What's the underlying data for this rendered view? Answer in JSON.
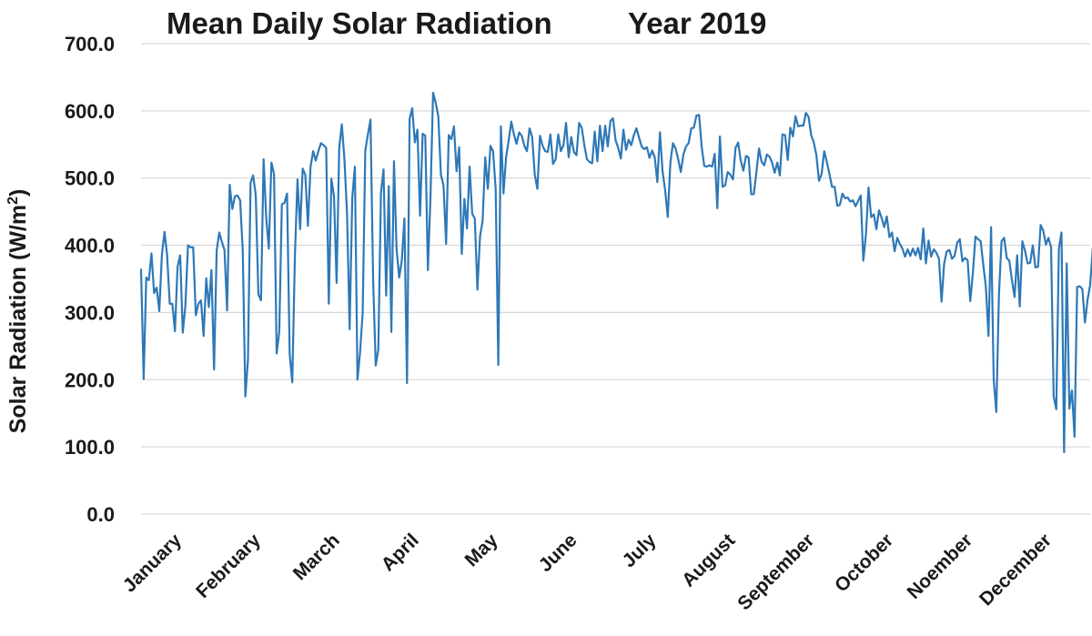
{
  "chart_data": {
    "type": "line",
    "title": "Mean Daily Solar Radiation",
    "title_year": "Year 2019",
    "ylabel_main": "Solar Radiation (W/m",
    "ylabel_sup": "2",
    "ylabel_end": ")",
    "ylim": [
      0,
      700
    ],
    "y_ticks": [
      "0.0",
      "100.0",
      "200.0",
      "300.0",
      "400.0",
      "500.0",
      "600.0",
      "700.0"
    ],
    "x_tick_labels": [
      "January",
      "February",
      "March",
      "April",
      "May",
      "June",
      "July",
      "August",
      "September",
      "October",
      "Noember",
      "December"
    ],
    "x_range_days": [
      1,
      365
    ],
    "grid": true,
    "series_color": "#2e78b7",
    "series": [
      {
        "values": [
          365,
          201,
          352,
          348,
          388,
          329,
          337,
          302,
          386,
          420,
          385,
          313,
          313,
          272,
          368,
          385,
          270,
          310,
          400,
          397,
          397,
          296,
          313,
          318,
          265,
          351,
          308,
          363,
          215,
          392,
          419,
          405,
          393,
          303,
          490,
          454,
          473,
          474,
          467,
          393,
          175,
          230,
          493,
          504,
          474,
          327,
          318,
          528,
          441,
          395,
          523,
          506,
          239,
          271,
          461,
          463,
          477,
          238,
          196,
          384,
          498,
          424,
          514,
          505,
          429,
          517,
          540,
          526,
          540,
          552,
          549,
          545,
          313,
          499,
          473,
          344,
          545,
          580,
          528,
          447,
          275,
          470,
          517,
          200,
          241,
          300,
          541,
          565,
          587,
          350,
          221,
          245,
          478,
          513,
          325,
          488,
          271,
          525,
          394,
          352,
          377,
          440,
          195,
          588,
          604,
          553,
          572,
          444,
          566,
          563,
          363,
          472,
          627,
          612,
          592,
          505,
          489,
          402,
          564,
          558,
          577,
          510,
          546,
          387,
          469,
          425,
          517,
          447,
          440,
          334,
          413,
          437,
          531,
          484,
          548,
          540,
          484,
          222,
          577,
          477,
          531,
          556,
          584,
          565,
          551,
          568,
          563,
          548,
          540,
          574,
          561,
          505,
          484,
          563,
          548,
          540,
          539,
          565,
          521,
          528,
          565,
          540,
          549,
          582,
          531,
          561,
          539,
          534,
          582,
          575,
          549,
          528,
          524,
          522,
          569,
          525,
          578,
          540,
          578,
          547,
          585,
          589,
          556,
          545,
          529,
          572,
          542,
          557,
          549,
          564,
          574,
          560,
          547,
          543,
          546,
          530,
          541,
          531,
          494,
          568,
          510,
          482,
          442,
          523,
          552,
          544,
          528,
          509,
          535,
          547,
          552,
          574,
          575,
          593,
          594,
          547,
          518,
          517,
          519,
          517,
          536,
          455,
          562,
          487,
          489,
          509,
          505,
          498,
          545,
          553,
          526,
          511,
          533,
          531,
          476,
          476,
          509,
          544,
          524,
          519,
          535,
          532,
          523,
          508,
          523,
          504,
          565,
          564,
          527,
          575,
          562,
          592,
          577,
          578,
          578,
          597,
          591,
          564,
          553,
          534,
          496,
          506,
          540,
          524,
          506,
          487,
          487,
          459,
          460,
          477,
          470,
          471,
          465,
          467,
          458,
          466,
          474,
          377,
          416,
          486,
          442,
          446,
          424,
          452,
          441,
          427,
          443,
          412,
          419,
          391,
          411,
          402,
          395,
          383,
          394,
          384,
          395,
          385,
          396,
          379,
          425,
          373,
          407,
          383,
          394,
          389,
          380,
          316,
          373,
          391,
          393,
          380,
          384,
          404,
          409,
          376,
          381,
          378,
          317,
          358,
          413,
          409,
          406,
          371,
          338,
          265,
          427,
          200,
          152,
          325,
          406,
          411,
          381,
          377,
          348,
          323,
          385,
          309,
          406,
          392,
          373,
          374,
          400,
          367,
          368,
          430,
          422,
          401,
          411,
          397,
          175,
          156,
          395,
          419,
          92,
          373,
          157,
          184,
          115,
          338,
          339,
          335,
          285,
          319,
          341,
          395,
          377,
          368,
          368,
          387,
          355,
          380,
          393
        ]
      }
    ]
  }
}
